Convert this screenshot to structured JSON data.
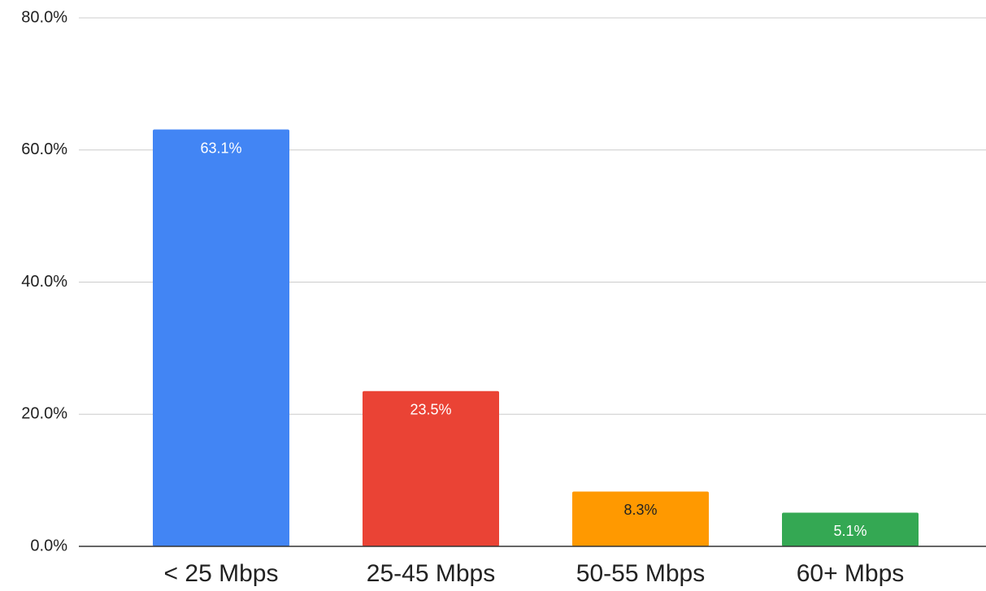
{
  "chart_data": {
    "type": "bar",
    "categories": [
      "< 25 Mbps",
      "25-45 Mbps",
      "50-55 Mbps",
      "60+ Mbps"
    ],
    "values": [
      63.1,
      23.5,
      8.3,
      5.1
    ],
    "value_labels": [
      "63.1%",
      "23.5%",
      "8.3%",
      "5.1%"
    ],
    "colors": [
      "#4285f4",
      "#ea4335",
      "#ff9900",
      "#34a853"
    ],
    "ylim": [
      0,
      80
    ],
    "yticks": [
      {
        "value": 0,
        "label": "0.0%"
      },
      {
        "value": 20,
        "label": "20.0%"
      },
      {
        "value": 40,
        "label": "40.0%"
      },
      {
        "value": 60,
        "label": "60.0%"
      },
      {
        "value": 80,
        "label": "80.0%"
      }
    ],
    "grid": true
  }
}
